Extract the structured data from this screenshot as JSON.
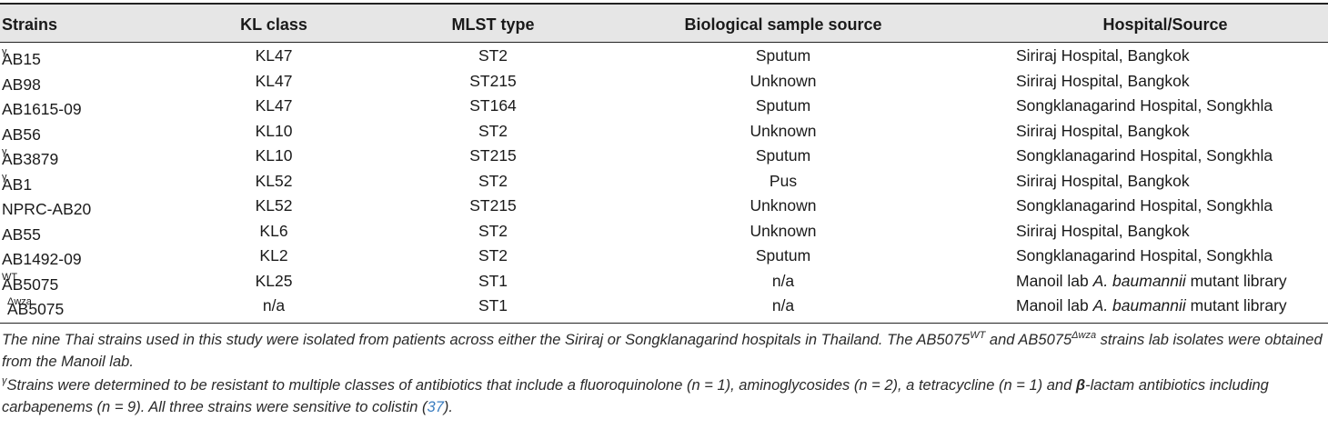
{
  "table": {
    "headers": [
      "Strains",
      "KL class",
      "MLST type",
      "Biological sample source",
      "Hospital/Source"
    ],
    "rows": [
      {
        "strain": "AB15",
        "sup": "γ",
        "kl": "KL47",
        "mlst": "ST2",
        "source": "Sputum",
        "hospital": "Siriraj Hospital, Bangkok"
      },
      {
        "strain": "AB98",
        "sup": "",
        "kl": "KL47",
        "mlst": "ST215",
        "source": "Unknown",
        "hospital": "Siriraj Hospital, Bangkok"
      },
      {
        "strain": "AB1615-09",
        "sup": "",
        "kl": "KL47",
        "mlst": "ST164",
        "source": "Sputum",
        "hospital": "Songklanagarind Hospital, Songkhla"
      },
      {
        "strain": "AB56",
        "sup": "",
        "kl": "KL10",
        "mlst": "ST2",
        "source": "Unknown",
        "hospital": "Siriraj Hospital, Bangkok"
      },
      {
        "strain": "AB3879",
        "sup": "γ",
        "kl": "KL10",
        "mlst": "ST215",
        "source": "Sputum",
        "hospital": "Songklanagarind Hospital, Songkhla"
      },
      {
        "strain": "AB1",
        "sup": "γ",
        "kl": "KL52",
        "mlst": "ST2",
        "source": "Pus",
        "hospital": "Siriraj Hospital, Bangkok"
      },
      {
        "strain": "NPRC-AB20",
        "sup": "",
        "kl": "KL52",
        "mlst": "ST215",
        "source": "Unknown",
        "hospital": "Songklanagarind Hospital, Songkhla"
      },
      {
        "strain": "AB55",
        "sup": "",
        "kl": "KL6",
        "mlst": "ST2",
        "source": "Unknown",
        "hospital": "Siriraj Hospital, Bangkok"
      },
      {
        "strain": "AB1492-09",
        "sup": "",
        "kl": "KL2",
        "mlst": "ST2",
        "source": "Sputum",
        "hospital": "Songklanagarind Hospital, Songkhla"
      },
      {
        "strain": "AB5075",
        "sup": "WT",
        "kl": "KL25",
        "mlst": "ST1",
        "source": "n/a",
        "hospital": "Manoil lab A. baumannii mutant library"
      },
      {
        "strain": "AB5075",
        "sup": "Δwza",
        "kl": "n/a",
        "mlst": "ST1",
        "source": "n/a",
        "hospital": "Manoil lab A. baumannii mutant library"
      }
    ]
  },
  "footnotes": {
    "note1_a": "The nine Thai strains used in this study were isolated from patients across either the Siriraj or Songklanagarind hospitals in Thailand. The AB5075",
    "note1_sup1": "WT",
    "note1_b": " and AB5075",
    "note1_sup2": "Δwza",
    "note1_c": " strains lab isolates were obtained from the Manoil lab.",
    "note2_mark": "γ",
    "note2_a": "Strains were determined to be resistant to multiple classes of antibiotics that include a fluoroquinolone (n = 1), aminoglycosides (n = 2), a tetracycline (n = 1) and ",
    "note2_beta": "β",
    "note2_b": "-lactam antibiotics including carbapenems (n = 9). All three strains were sensitive to colistin (",
    "note2_cite": "37",
    "note2_c": ")."
  }
}
